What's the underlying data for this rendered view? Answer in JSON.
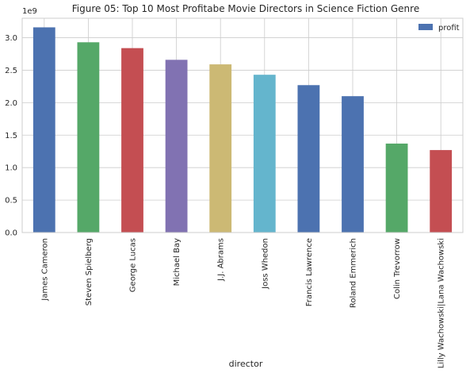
{
  "chart_data": {
    "type": "bar",
    "title": "Figure 05: Top 10 Most Profitabe Movie Directors in Science Fiction Genre",
    "xlabel": "director",
    "ylabel": "",
    "y_multiplier_label": "1e9",
    "ylim": [
      0,
      3.3
    ],
    "yticks": [
      0.0,
      0.5,
      1.0,
      1.5,
      2.0,
      2.5,
      3.0
    ],
    "ytick_labels": [
      "0.0",
      "0.5",
      "1.0",
      "1.5",
      "2.0",
      "2.5",
      "3.0"
    ],
    "categories": [
      "James Cameron",
      "Steven Spielberg",
      "George Lucas",
      "Michael Bay",
      "J.J. Abrams",
      "Joss Whedon",
      "Francis Lawrence",
      "Roland Emmerich",
      "Colin Trevorrow",
      "Lilly Wachowski|Lana Wachowski"
    ],
    "series": [
      {
        "name": "profit",
        "values": [
          3.16,
          2.93,
          2.84,
          2.66,
          2.59,
          2.43,
          2.27,
          2.1,
          1.37,
          1.27
        ]
      }
    ],
    "bar_colors": [
      "#4c72b0",
      "#55a868",
      "#c44e52",
      "#8172b2",
      "#ccb974",
      "#64b5cd",
      "#4c72b0",
      "#4c72b0",
      "#55a868",
      "#c44e52"
    ],
    "legend_color": "#4c72b0",
    "grid": true,
    "legend_position": "top-right"
  }
}
